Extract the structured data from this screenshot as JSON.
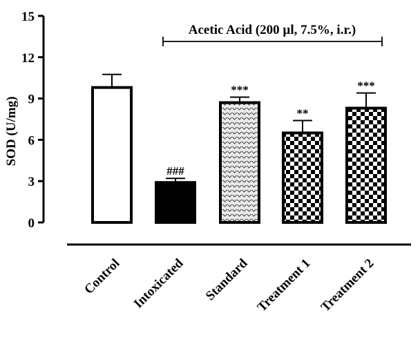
{
  "chart_data": {
    "type": "bar",
    "title": "",
    "xlabel": "",
    "ylabel": "SOD (U/mg)",
    "ylim": [
      0,
      15
    ],
    "yticks": [
      "0",
      "3",
      "6",
      "9",
      "12",
      "15"
    ],
    "categories": [
      "Control",
      "Intoxicated",
      "Standard",
      "Treatment 1",
      "Treatment 2"
    ],
    "values": [
      9.8,
      2.9,
      8.7,
      6.5,
      8.3
    ],
    "errors": [
      0.95,
      0.3,
      0.4,
      0.9,
      1.1
    ],
    "significance": [
      "",
      "###",
      "***",
      "**",
      "***"
    ],
    "annotation": "Acetic Acid (200 µl, 7.5%, i.r.)",
    "fills": [
      "#ffffff",
      "#000000",
      "dots-gray",
      "checker",
      "checker"
    ],
    "grid": false,
    "legend": "none"
  }
}
